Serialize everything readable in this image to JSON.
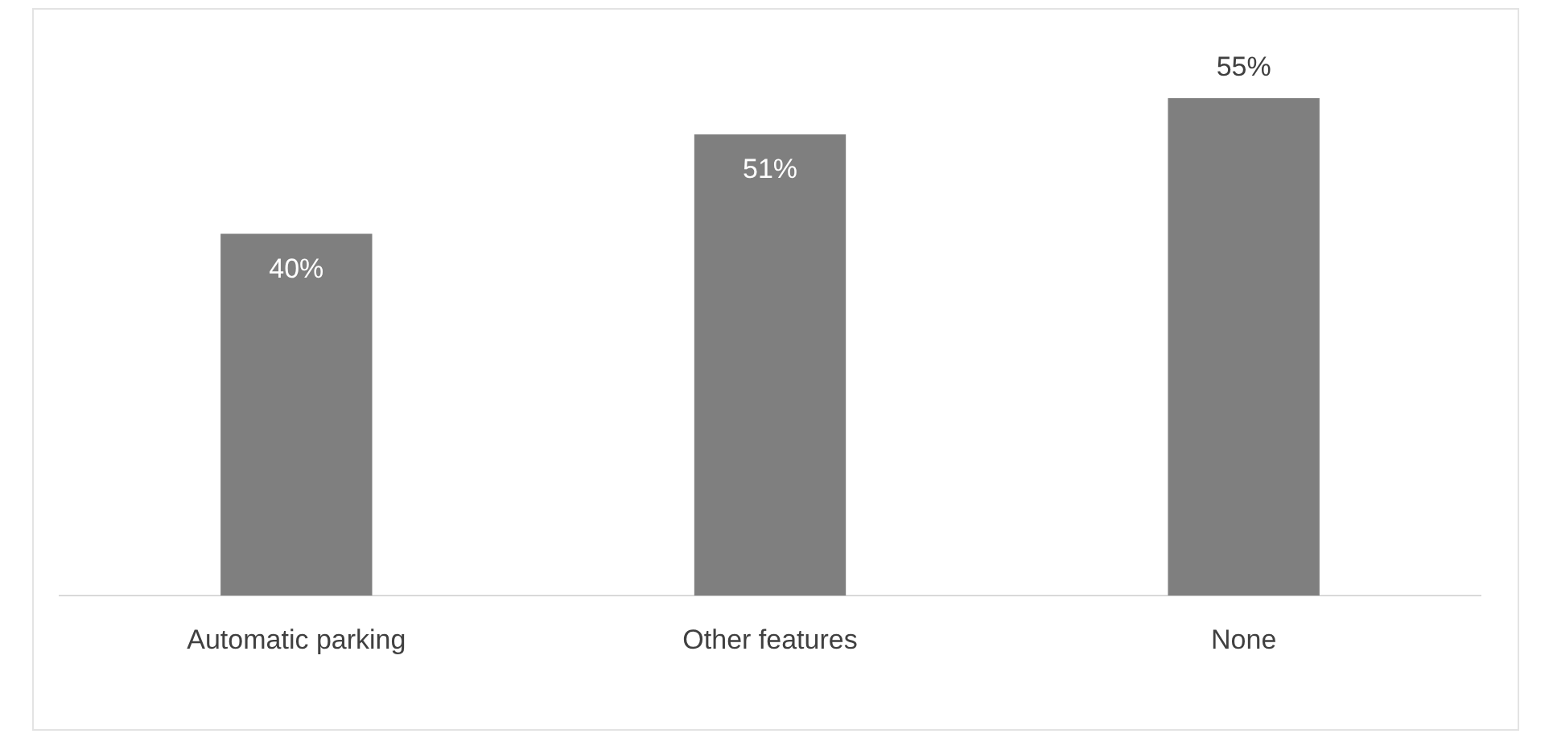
{
  "chart_data": {
    "type": "bar",
    "categories": [
      "Automatic parking",
      "Other features",
      "None"
    ],
    "values": [
      40,
      51,
      55
    ],
    "value_labels": [
      "40%",
      "51%",
      "55%"
    ],
    "color": "#7f7f7f",
    "ylim": [
      0,
      55
    ],
    "grid": false,
    "legend": false
  }
}
